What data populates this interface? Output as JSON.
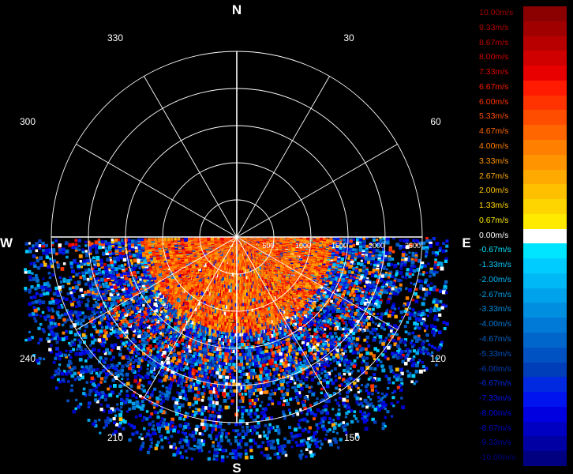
{
  "chart_data": {
    "type": "polar-scatter",
    "title": "",
    "compass": [
      "N",
      "E",
      "S",
      "W"
    ],
    "bearing_labels": [
      "30",
      "60",
      "120",
      "150",
      "210",
      "240",
      "300",
      "330"
    ],
    "range_rings": [
      "500",
      "1000",
      "1500",
      "2000",
      "2500"
    ],
    "range_max": 2500,
    "grid": true,
    "legend_placement": "right",
    "legend": [
      {
        "label": "10.00m/s",
        "color": "#8b0000",
        "text_color": "#a00000"
      },
      {
        "label": "9.33m/s",
        "color": "#a00000",
        "text_color": "#b00000"
      },
      {
        "label": "8.67m/s",
        "color": "#b80000",
        "text_color": "#c00000"
      },
      {
        "label": "8.00m/s",
        "color": "#d00000",
        "text_color": "#d00000"
      },
      {
        "label": "7.33m/s",
        "color": "#e80000",
        "text_color": "#e00000"
      },
      {
        "label": "6.67m/s",
        "color": "#ff1a00",
        "text_color": "#ff1a00"
      },
      {
        "label": "6.00m/s",
        "color": "#ff3300",
        "text_color": "#ff3300"
      },
      {
        "label": "5.33m/s",
        "color": "#ff4d00",
        "text_color": "#ff4d00"
      },
      {
        "label": "4.67m/s",
        "color": "#ff6600",
        "text_color": "#ff6600"
      },
      {
        "label": "4.00m/s",
        "color": "#ff7f00",
        "text_color": "#ff7f00"
      },
      {
        "label": "3.33m/s",
        "color": "#ff9400",
        "text_color": "#ff9400"
      },
      {
        "label": "2.67m/s",
        "color": "#ffaa00",
        "text_color": "#ffaa00"
      },
      {
        "label": "2.00m/s",
        "color": "#ffc000",
        "text_color": "#ffc000"
      },
      {
        "label": "1.33m/s",
        "color": "#ffd500",
        "text_color": "#ffd500"
      },
      {
        "label": "0.67m/s",
        "color": "#ffea00",
        "text_color": "#ffea00"
      },
      {
        "label": "0.00m/s",
        "color": "#ffffff",
        "text_color": "#ffffff"
      },
      {
        "label": "-0.67m/s",
        "color": "#00e5ff",
        "text_color": "#00e5ff"
      },
      {
        "label": "-1.33m/s",
        "color": "#00ccff",
        "text_color": "#00ccff"
      },
      {
        "label": "-2.00m/s",
        "color": "#00b8f5",
        "text_color": "#00b8f5"
      },
      {
        "label": "-2.67m/s",
        "color": "#00a3eb",
        "text_color": "#00a3eb"
      },
      {
        "label": "-3.33m/s",
        "color": "#008fe0",
        "text_color": "#008fe0"
      },
      {
        "label": "-4.00m/s",
        "color": "#007ad6",
        "text_color": "#007ad6"
      },
      {
        "label": "-4.67m/s",
        "color": "#0066cc",
        "text_color": "#0066cc"
      },
      {
        "label": "-5.33m/s",
        "color": "#0052c2",
        "text_color": "#0052c2"
      },
      {
        "label": "-6.00m/s",
        "color": "#003db8",
        "text_color": "#003db8"
      },
      {
        "label": "-6.67m/s",
        "color": "#0029e0",
        "text_color": "#0029e0"
      },
      {
        "label": "-7.33m/s",
        "color": "#0014f0",
        "text_color": "#0014f0"
      },
      {
        "label": "-8.00m/s",
        "color": "#0000e0",
        "text_color": "#0000e0"
      },
      {
        "label": "-8.67m/s",
        "color": "#0000c2",
        "text_color": "#0000c2"
      },
      {
        "label": "-9.33m/s",
        "color": "#0000a3",
        "text_color": "#0000a3"
      },
      {
        "label": "-10.00m/s",
        "color": "#000080",
        "text_color": "#000080"
      }
    ],
    "sector": {
      "from_bearing": 90,
      "to_bearing": 270,
      "note_visible": false
    }
  }
}
